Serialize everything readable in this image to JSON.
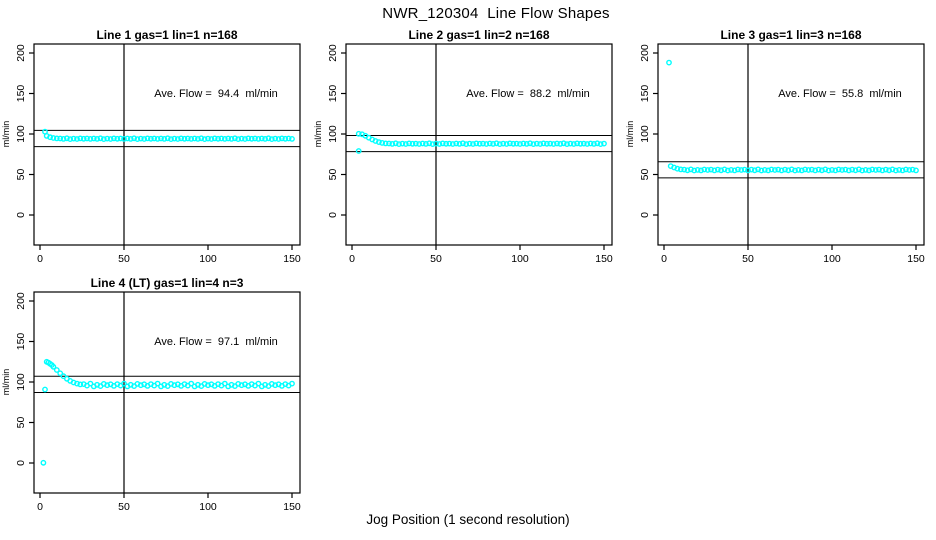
{
  "figure": {
    "title": "NWR_120304  Line Flow Shapes",
    "xlabel": "Jog Position (1 second resolution)",
    "point_color": "#00ffff",
    "axis_color": "#000000",
    "background": "#ffffff"
  },
  "axes": {
    "ylabel": "ml/min",
    "x_ticks": [
      0,
      50,
      100,
      150
    ],
    "y_ticks": [
      0,
      50,
      100,
      150,
      200
    ],
    "xlim": [
      0,
      150
    ],
    "ylim": [
      0,
      200
    ],
    "grid": false
  },
  "chart_data": [
    {
      "type": "scatter",
      "title": "Line 1 gas=1 lin=1 n=168",
      "annotation": "Ave. Flow =  94.4  ml/min",
      "ave_flow": 94.4,
      "vline_x": 50,
      "hlines": [
        104.4,
        84.4
      ],
      "points": [
        [
          3,
          102.8
        ],
        [
          4,
          97.6
        ],
        [
          6,
          96
        ],
        [
          8,
          95
        ],
        [
          10,
          94.6
        ],
        [
          12,
          94.5
        ],
        [
          14,
          94
        ],
        [
          16,
          94.7
        ],
        [
          18,
          93.7
        ],
        [
          20,
          94.3
        ],
        [
          22,
          93.8
        ],
        [
          24,
          94.6
        ],
        [
          26,
          94.1
        ],
        [
          28,
          94.4
        ],
        [
          30,
          93.9
        ],
        [
          32,
          94.5
        ],
        [
          34,
          94
        ],
        [
          36,
          94.7
        ],
        [
          38,
          93.7
        ],
        [
          40,
          94.3
        ],
        [
          42,
          93.8
        ],
        [
          44,
          94.6
        ],
        [
          46,
          94.1
        ],
        [
          48,
          94.4
        ],
        [
          50,
          93.9
        ],
        [
          52,
          94.5
        ],
        [
          54,
          94
        ],
        [
          56,
          94.7
        ],
        [
          58,
          93.7
        ],
        [
          60,
          94.3
        ],
        [
          62,
          93.8
        ],
        [
          64,
          94.6
        ],
        [
          66,
          94.1
        ],
        [
          68,
          94.4
        ],
        [
          70,
          93.9
        ],
        [
          72,
          94.5
        ],
        [
          74,
          94
        ],
        [
          76,
          94.7
        ],
        [
          78,
          93.7
        ],
        [
          80,
          94.3
        ],
        [
          82,
          93.8
        ],
        [
          84,
          94.6
        ],
        [
          86,
          94.1
        ],
        [
          88,
          94.4
        ],
        [
          90,
          93.9
        ],
        [
          92,
          94.5
        ],
        [
          94,
          94
        ],
        [
          96,
          94.7
        ],
        [
          98,
          93.7
        ],
        [
          100,
          94.3
        ],
        [
          102,
          93.8
        ],
        [
          104,
          94.6
        ],
        [
          106,
          94.1
        ],
        [
          108,
          94.4
        ],
        [
          110,
          93.9
        ],
        [
          112,
          94.5
        ],
        [
          114,
          94
        ],
        [
          116,
          94.7
        ],
        [
          118,
          93.7
        ],
        [
          120,
          94.3
        ],
        [
          122,
          93.8
        ],
        [
          124,
          94.6
        ],
        [
          126,
          94.1
        ],
        [
          128,
          94.4
        ],
        [
          130,
          93.9
        ],
        [
          132,
          94.5
        ],
        [
          134,
          94
        ],
        [
          136,
          94.7
        ],
        [
          138,
          93.7
        ],
        [
          140,
          94.3
        ],
        [
          142,
          93.8
        ],
        [
          144,
          94.6
        ],
        [
          146,
          94.1
        ],
        [
          148,
          94.4
        ],
        [
          150,
          93.9
        ]
      ]
    },
    {
      "type": "scatter",
      "title": "Line 2 gas=1 lin=2 n=168",
      "annotation": "Ave. Flow =  88.2  ml/min",
      "ave_flow": 88.2,
      "vline_x": 50,
      "hlines": [
        98.2,
        78.2
      ],
      "points": [
        [
          4,
          79
        ],
        [
          4,
          100.3
        ],
        [
          6,
          99.6
        ],
        [
          8,
          97.8
        ],
        [
          10,
          95.4
        ],
        [
          12,
          93.2
        ],
        [
          14,
          91.4
        ],
        [
          16,
          90
        ],
        [
          18,
          89
        ],
        [
          20,
          88.4
        ],
        [
          22,
          88.3
        ],
        [
          24,
          87.8
        ],
        [
          26,
          88.5
        ],
        [
          28,
          87.5
        ],
        [
          30,
          88.1
        ],
        [
          32,
          87.6
        ],
        [
          34,
          88.4
        ],
        [
          36,
          87.9
        ],
        [
          38,
          88.2
        ],
        [
          40,
          87.7
        ],
        [
          42,
          88.3
        ],
        [
          44,
          87.8
        ],
        [
          46,
          88.5
        ],
        [
          48,
          87.5
        ],
        [
          50,
          88.1
        ],
        [
          52,
          87.6
        ],
        [
          54,
          88.4
        ],
        [
          56,
          87.9
        ],
        [
          58,
          88.2
        ],
        [
          60,
          87.7
        ],
        [
          62,
          88.3
        ],
        [
          64,
          87.8
        ],
        [
          66,
          88.5
        ],
        [
          68,
          87.5
        ],
        [
          70,
          88.1
        ],
        [
          72,
          87.6
        ],
        [
          74,
          88.4
        ],
        [
          76,
          87.9
        ],
        [
          78,
          88.2
        ],
        [
          80,
          87.7
        ],
        [
          82,
          88.3
        ],
        [
          84,
          87.8
        ],
        [
          86,
          88.5
        ],
        [
          88,
          87.5
        ],
        [
          90,
          88.1
        ],
        [
          92,
          87.6
        ],
        [
          94,
          88.4
        ],
        [
          96,
          87.9
        ],
        [
          98,
          88.2
        ],
        [
          100,
          87.7
        ],
        [
          102,
          88.3
        ],
        [
          104,
          87.8
        ],
        [
          106,
          88.5
        ],
        [
          108,
          87.5
        ],
        [
          110,
          88.1
        ],
        [
          112,
          87.6
        ],
        [
          114,
          88.4
        ],
        [
          116,
          87.9
        ],
        [
          118,
          88.2
        ],
        [
          120,
          87.7
        ],
        [
          122,
          88.3
        ],
        [
          124,
          87.8
        ],
        [
          126,
          88.5
        ],
        [
          128,
          87.5
        ],
        [
          130,
          88.1
        ],
        [
          132,
          87.6
        ],
        [
          134,
          88.4
        ],
        [
          136,
          87.9
        ],
        [
          138,
          88.2
        ],
        [
          140,
          87.7
        ],
        [
          142,
          88.3
        ],
        [
          144,
          87.8
        ],
        [
          146,
          88.5
        ],
        [
          148,
          87.5
        ],
        [
          150,
          88.1
        ]
      ]
    },
    {
      "type": "scatter",
      "title": "Line 3 gas=1 lin=3 n=168",
      "annotation": "Ave. Flow =  55.8  ml/min",
      "ave_flow": 55.8,
      "vline_x": 50,
      "hlines": [
        65.8,
        45.8
      ],
      "points": [
        [
          3,
          188.2
        ],
        [
          4,
          60.4
        ],
        [
          6,
          58.6
        ],
        [
          8,
          57.2
        ],
        [
          10,
          56.3
        ],
        [
          12,
          56.1
        ],
        [
          14,
          55.2
        ],
        [
          16,
          56.3
        ],
        [
          18,
          54.9
        ],
        [
          20,
          55.7
        ],
        [
          22,
          55
        ],
        [
          24,
          56.2
        ],
        [
          26,
          55.5
        ],
        [
          28,
          56
        ],
        [
          30,
          55.1
        ],
        [
          32,
          56.1
        ],
        [
          34,
          55.2
        ],
        [
          36,
          56.3
        ],
        [
          38,
          54.9
        ],
        [
          40,
          55.7
        ],
        [
          42,
          55
        ],
        [
          44,
          56.2
        ],
        [
          46,
          55.5
        ],
        [
          48,
          56
        ],
        [
          50,
          55.1
        ],
        [
          52,
          56.1
        ],
        [
          54,
          55.2
        ],
        [
          56,
          56.3
        ],
        [
          58,
          54.9
        ],
        [
          60,
          55.7
        ],
        [
          62,
          55
        ],
        [
          64,
          56.2
        ],
        [
          66,
          55.5
        ],
        [
          68,
          56
        ],
        [
          70,
          55.1
        ],
        [
          72,
          56.1
        ],
        [
          74,
          55.2
        ],
        [
          76,
          56.3
        ],
        [
          78,
          54.9
        ],
        [
          80,
          55.7
        ],
        [
          82,
          55
        ],
        [
          84,
          56.2
        ],
        [
          86,
          55.5
        ],
        [
          88,
          56
        ],
        [
          90,
          55.1
        ],
        [
          92,
          56.1
        ],
        [
          94,
          55.2
        ],
        [
          96,
          56.3
        ],
        [
          98,
          54.9
        ],
        [
          100,
          55.7
        ],
        [
          102,
          55
        ],
        [
          104,
          56.2
        ],
        [
          106,
          55.5
        ],
        [
          108,
          56
        ],
        [
          110,
          55.1
        ],
        [
          112,
          56.1
        ],
        [
          114,
          55.2
        ],
        [
          116,
          56.3
        ],
        [
          118,
          54.9
        ],
        [
          120,
          55.7
        ],
        [
          122,
          55
        ],
        [
          124,
          56.2
        ],
        [
          126,
          55.5
        ],
        [
          128,
          56
        ],
        [
          130,
          55.1
        ],
        [
          132,
          56.1
        ],
        [
          134,
          55.2
        ],
        [
          136,
          56.3
        ],
        [
          138,
          54.9
        ],
        [
          140,
          55.7
        ],
        [
          142,
          55
        ],
        [
          144,
          56.2
        ],
        [
          146,
          55.5
        ],
        [
          148,
          56
        ],
        [
          150,
          55.1
        ]
      ]
    },
    {
      "type": "scatter",
      "title": "Line 4 (LT) gas=1 lin=4 n=3",
      "annotation": "Ave. Flow =  97.1  ml/min",
      "ave_flow": 97.1,
      "vline_x": 50,
      "hlines": [
        107.1,
        87.1
      ],
      "points": [
        [
          2,
          0.2
        ],
        [
          3,
          90.8
        ],
        [
          4,
          125
        ],
        [
          5,
          124
        ],
        [
          6,
          122.5
        ],
        [
          7,
          121
        ],
        [
          8,
          118.8
        ],
        [
          10,
          114.8
        ],
        [
          12,
          110.8
        ],
        [
          14,
          107.2
        ],
        [
          16,
          104
        ],
        [
          18,
          101.4
        ],
        [
          20,
          99.4
        ],
        [
          22,
          98
        ],
        [
          24,
          97
        ],
        [
          26,
          97.4
        ],
        [
          28,
          95.5
        ],
        [
          30,
          98
        ],
        [
          32,
          94.6
        ],
        [
          34,
          96.6
        ],
        [
          36,
          94.9
        ],
        [
          38,
          97.7
        ],
        [
          40,
          96
        ],
        [
          42,
          97.1
        ],
        [
          44,
          95.2
        ],
        [
          46,
          97.4
        ],
        [
          48,
          95.5
        ],
        [
          50,
          98
        ],
        [
          52,
          94.6
        ],
        [
          54,
          96.6
        ],
        [
          56,
          94.9
        ],
        [
          58,
          97.7
        ],
        [
          60,
          96
        ],
        [
          62,
          97.1
        ],
        [
          64,
          95.2
        ],
        [
          66,
          97.4
        ],
        [
          68,
          95.5
        ],
        [
          70,
          98
        ],
        [
          72,
          94.6
        ],
        [
          74,
          96.6
        ],
        [
          76,
          94.9
        ],
        [
          78,
          97.7
        ],
        [
          80,
          96
        ],
        [
          82,
          97.1
        ],
        [
          84,
          95.2
        ],
        [
          86,
          97.4
        ],
        [
          88,
          95.5
        ],
        [
          90,
          98
        ],
        [
          92,
          94.6
        ],
        [
          94,
          96.6
        ],
        [
          96,
          94.9
        ],
        [
          98,
          97.7
        ],
        [
          100,
          96
        ],
        [
          102,
          97.1
        ],
        [
          104,
          95.2
        ],
        [
          106,
          97.4
        ],
        [
          108,
          95.5
        ],
        [
          110,
          98
        ],
        [
          112,
          94.6
        ],
        [
          114,
          96.6
        ],
        [
          116,
          94.9
        ],
        [
          118,
          97.7
        ],
        [
          120,
          96
        ],
        [
          122,
          97.1
        ],
        [
          124,
          95.2
        ],
        [
          126,
          97.4
        ],
        [
          128,
          95.5
        ],
        [
          130,
          98
        ],
        [
          132,
          94.6
        ],
        [
          134,
          96.6
        ],
        [
          136,
          94.9
        ],
        [
          138,
          97.7
        ],
        [
          140,
          96
        ],
        [
          142,
          97.1
        ],
        [
          144,
          95.2
        ],
        [
          146,
          97.4
        ],
        [
          148,
          95.5
        ],
        [
          150,
          98
        ]
      ]
    }
  ]
}
